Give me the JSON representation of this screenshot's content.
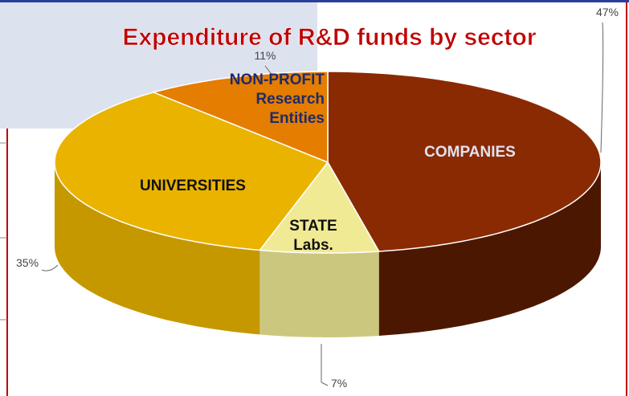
{
  "chart_data": {
    "type": "pie3d",
    "title": "Expenditure of R&D funds by sector",
    "categories": [
      "COMPANIES",
      "STATE Labs.",
      "UNIVERSITIES",
      "NON-PROFIT Research Entities"
    ],
    "values": [
      47,
      7,
      35,
      11
    ],
    "value_labels": [
      "47%",
      "7%",
      "35%",
      "11%"
    ],
    "colors": [
      "#8a2a02",
      "#f0ea95",
      "#e9b300",
      "#e47d00"
    ]
  }
}
